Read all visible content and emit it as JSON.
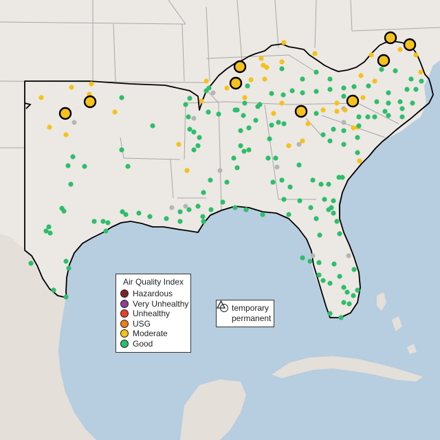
{
  "colors": {
    "water": "#b7cde0",
    "land": "#ece8e3",
    "state_lines": "#a8a8a8",
    "region_outline": "#000000",
    "no_data": "#b5b5b5"
  },
  "legend": {
    "title": "Air Quality Index",
    "items": [
      {
        "label": "Hazardous",
        "color": "#7e2328"
      },
      {
        "label": "Very Unhealthy",
        "color": "#8f3f97"
      },
      {
        "label": "Unhealthy",
        "color": "#e8412f"
      },
      {
        "label": "USG",
        "color": "#f07e1a"
      },
      {
        "label": "Moderate",
        "color": "#f5c21b"
      },
      {
        "label": "Good",
        "color": "#2dbe6c"
      }
    ]
  },
  "shape_legend": {
    "items": [
      {
        "label": "temporary",
        "shape": "circle"
      },
      {
        "label": "permanent",
        "shape": "triangle"
      }
    ]
  },
  "monitors": {
    "large_moderate_count": 10,
    "small_moderate_count": 40,
    "good_count": 160,
    "no_data_count": 12
  }
}
